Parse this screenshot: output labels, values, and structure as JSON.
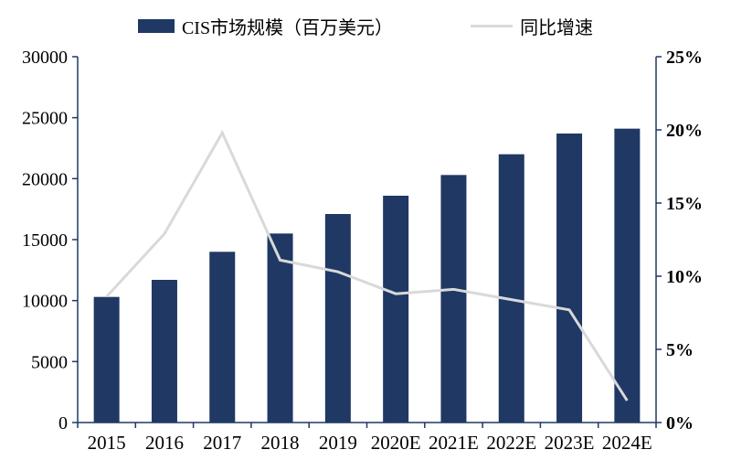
{
  "colors": {
    "bar": "#1F3864",
    "line": "#D9D9D9",
    "axis": "#1F3864",
    "text": "#000000"
  },
  "chart_data": {
    "type": "bar",
    "subtype": "combo-bar-line",
    "title": "",
    "categories": [
      "2015",
      "2016",
      "2017",
      "2018",
      "2019",
      "2020E",
      "2021E",
      "2022E",
      "2023E",
      "2024E"
    ],
    "series": [
      {
        "name": "CIS市场规模（百万美元）",
        "type": "bar",
        "axis": "left",
        "color": "#1F3864",
        "values": [
          10300,
          11700,
          14000,
          15500,
          17100,
          18600,
          20300,
          22000,
          23700,
          24100
        ]
      },
      {
        "name": "同比增速",
        "type": "line",
        "axis": "right",
        "color": "#D9D9D9",
        "values": [
          8.6,
          12.9,
          19.8,
          11.1,
          10.3,
          8.8,
          9.1,
          8.4,
          7.7,
          1.5
        ]
      }
    ],
    "left_axis": {
      "min": 0,
      "max": 30000,
      "step": 5000,
      "ticks": [
        "0",
        "5000",
        "10000",
        "15000",
        "20000",
        "25000",
        "30000"
      ]
    },
    "right_axis": {
      "min": 0,
      "max": 25,
      "step": 5,
      "ticks": [
        "0%",
        "5%",
        "10%",
        "15%",
        "20%",
        "25%"
      ]
    },
    "grid": false,
    "legend_position": "top"
  }
}
